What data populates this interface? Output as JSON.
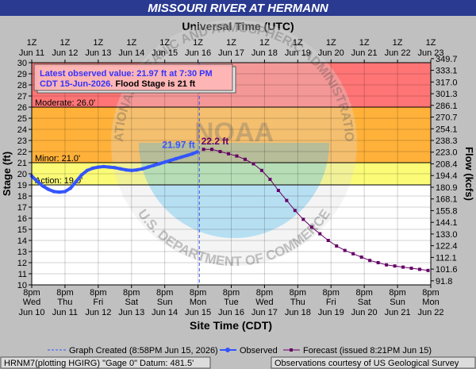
{
  "chart_data": {
    "type": "line",
    "title": "MISSOURI RIVER AT HERMANN",
    "top_axis_label": "Universal Time (UTC)",
    "bottom_axis_label": "Site Time (CDT)",
    "ylabel": "Stage (ft)",
    "y2label": "Flow (kcfs)",
    "ylim": [
      10,
      30
    ],
    "xlim": [
      "2026-06-10T20:00",
      "2026-06-22T20:00"
    ],
    "x_unit": "CDT",
    "yticks": [
      10,
      11,
      12,
      13,
      14,
      15,
      16,
      17,
      18,
      19,
      20,
      21,
      22,
      23,
      24,
      25,
      26,
      27,
      28,
      29,
      30
    ],
    "y2ticks": [
      "91.8",
      "101.6",
      "112.1",
      "122.4",
      "133.0",
      "144.1",
      "155.8",
      "168.1",
      "180.9",
      "194.4",
      "208.4",
      "223.0",
      "238.3",
      "254.1",
      "270.7",
      "286.1",
      "301.3",
      "317.0",
      "333.1",
      "349.7"
    ],
    "top_ticks": [
      [
        "1Z",
        "Jun 11"
      ],
      [
        "1Z",
        "Jun 12"
      ],
      [
        "1Z",
        "Jun 13"
      ],
      [
        "1Z",
        "Jun 14"
      ],
      [
        "1Z",
        "Jun 15"
      ],
      [
        "1Z",
        "Jun 16"
      ],
      [
        "1Z",
        "Jun 17"
      ],
      [
        "1Z",
        "Jun 18"
      ],
      [
        "1Z",
        "Jun 19"
      ],
      [
        "1Z",
        "Jun 20"
      ],
      [
        "1Z",
        "Jun 21"
      ],
      [
        "1Z",
        "Jun 22"
      ],
      [
        "1Z",
        "Jun 23"
      ]
    ],
    "bottom_ticks": [
      [
        "8pm",
        "Wed",
        "Jun 10"
      ],
      [
        "8pm",
        "Thu",
        "Jun 11"
      ],
      [
        "8pm",
        "Fri",
        "Jun 12"
      ],
      [
        "8pm",
        "Sat",
        "Jun 13"
      ],
      [
        "8pm",
        "Sun",
        "Jun 14"
      ],
      [
        "8pm",
        "Mon",
        "Jun 15"
      ],
      [
        "8pm",
        "Tue",
        "Jun 16"
      ],
      [
        "8pm",
        "Wed",
        "Jun 17"
      ],
      [
        "8pm",
        "Thu",
        "Jun 18"
      ],
      [
        "8pm",
        "Fri",
        "Jun 19"
      ],
      [
        "8pm",
        "Sat",
        "Jun 20"
      ],
      [
        "8pm",
        "Sun",
        "Jun 21"
      ],
      [
        "8pm",
        "Mon",
        "Jun 22"
      ]
    ],
    "flood_categories": [
      {
        "label": "Moderate: 26.0'",
        "stage": 26.0,
        "band": [
          26,
          30
        ],
        "color": "#ff7575"
      },
      {
        "label": "Minor: 21.0'",
        "stage": 21.0,
        "band": [
          21,
          26
        ],
        "color": "#ffb13a"
      },
      {
        "label": "Action: 19.0'",
        "stage": 19.0,
        "band": [
          19,
          21
        ],
        "color": "#fbfb77"
      }
    ],
    "series": [
      {
        "name": "Observed",
        "color": "#3355ff",
        "x": [
          "2026-06-10T20:00",
          "2026-06-11T00:00",
          "2026-06-11T04:00",
          "2026-06-11T08:00",
          "2026-06-11T12:00",
          "2026-06-11T16:00",
          "2026-06-11T20:00",
          "2026-06-12T00:00",
          "2026-06-12T04:00",
          "2026-06-12T08:00",
          "2026-06-12T12:00",
          "2026-06-12T16:00",
          "2026-06-12T20:00",
          "2026-06-13T00:00",
          "2026-06-13T04:00",
          "2026-06-13T08:00",
          "2026-06-13T12:00",
          "2026-06-13T16:00",
          "2026-06-13T20:00",
          "2026-06-14T00:00",
          "2026-06-14T04:00",
          "2026-06-14T08:00",
          "2026-06-14T12:00",
          "2026-06-14T16:00",
          "2026-06-14T20:00",
          "2026-06-15T00:00",
          "2026-06-15T04:00",
          "2026-06-15T08:00",
          "2026-06-15T12:00",
          "2026-06-15T16:00",
          "2026-06-15T19:30"
        ],
        "values": [
          19.8,
          19.3,
          18.9,
          18.6,
          18.4,
          18.35,
          18.4,
          18.7,
          19.3,
          19.9,
          20.3,
          20.5,
          20.6,
          20.65,
          20.6,
          20.55,
          20.45,
          20.35,
          20.3,
          20.35,
          20.45,
          20.6,
          20.75,
          20.9,
          21.05,
          21.2,
          21.35,
          21.5,
          21.65,
          21.8,
          21.97
        ]
      },
      {
        "name": "Forecast (issued 8:21PM Jun 15)",
        "color": "#660066",
        "x": [
          "2026-06-16T00:00",
          "2026-06-16T06:00",
          "2026-06-16T12:00",
          "2026-06-16T18:00",
          "2026-06-17T00:00",
          "2026-06-17T06:00",
          "2026-06-17T12:00",
          "2026-06-17T18:00",
          "2026-06-18T00:00",
          "2026-06-18T06:00",
          "2026-06-18T12:00",
          "2026-06-18T18:00",
          "2026-06-19T00:00",
          "2026-06-19T06:00",
          "2026-06-19T12:00",
          "2026-06-19T18:00",
          "2026-06-20T00:00",
          "2026-06-20T06:00",
          "2026-06-20T12:00",
          "2026-06-20T18:00",
          "2026-06-21T00:00",
          "2026-06-21T06:00",
          "2026-06-21T12:00",
          "2026-06-21T18:00",
          "2026-06-22T00:00",
          "2026-06-22T06:00",
          "2026-06-22T12:00",
          "2026-06-22T18:00"
        ],
        "values": [
          22.2,
          22.2,
          22.0,
          21.8,
          21.6,
          21.3,
          20.9,
          20.3,
          19.5,
          18.5,
          17.6,
          16.7,
          15.9,
          15.2,
          14.6,
          14.0,
          13.5,
          13.1,
          12.8,
          12.5,
          12.2,
          12.0,
          11.8,
          11.7,
          11.6,
          11.5,
          11.4,
          11.3
        ]
      }
    ],
    "graph_created": "2026-06-15T20:58",
    "latest_marker_label": "21.97 ft",
    "peak_marker_label": "22.2 ft",
    "latest_box": {
      "line1": "Latest observed value: 21.97 ft at 7:30 PM",
      "line2_blue": "CDT 15-Jun-2026.",
      "line2_black": " Flood Stage is 21 ft"
    },
    "legend": {
      "created": "Graph Created (8:58PM Jun 15, 2026)",
      "observed": "Observed",
      "forecast": "Forecast (issued 8:21PM Jun 15)"
    },
    "footer_left": "HRNM7(plotting HGIRG) \"Gage 0\" Datum: 481.5'",
    "footer_right": "Observations courtesy of US Geological Survey",
    "watermark": {
      "top": "NATIONAL OCEANIC AND ATMOSPHERIC ADMINISTRATION",
      "bottom": "U.S. DEPARTMENT OF COMMERCE",
      "center": "NOAA"
    }
  }
}
